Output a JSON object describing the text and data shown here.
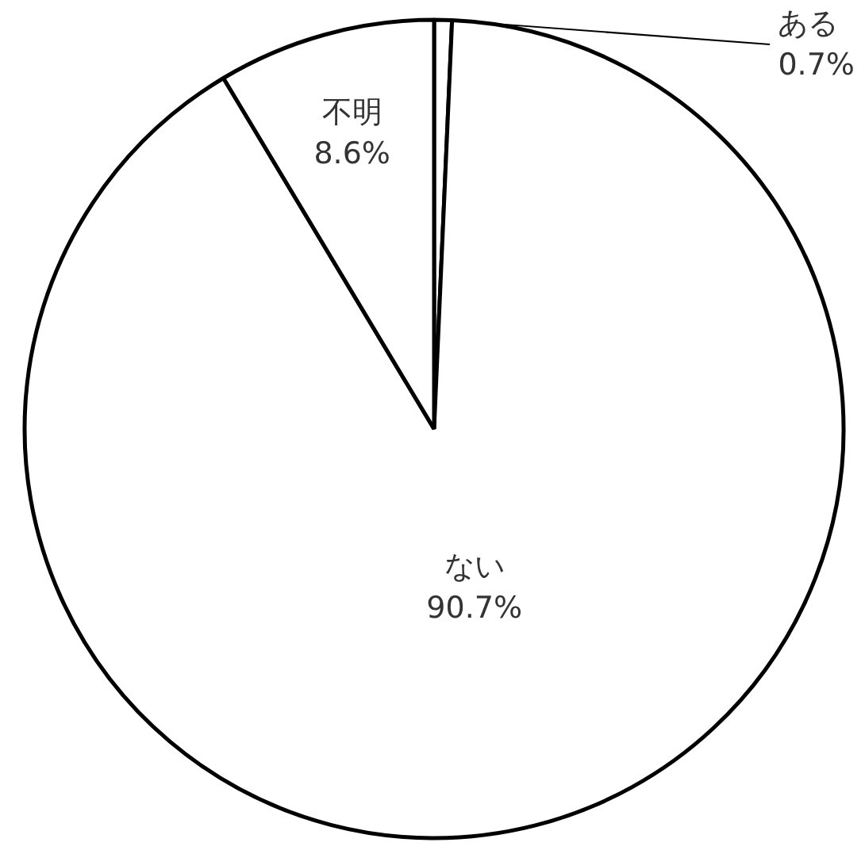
{
  "chart_data": {
    "type": "pie",
    "categories": [
      "ある",
      "ない",
      "不明"
    ],
    "values": [
      0.7,
      90.7,
      8.6
    ],
    "value_labels": [
      "0.7%",
      "90.7%",
      "8.6%"
    ],
    "colors": [
      "#ffffff",
      "#ffffff",
      "#ffffff"
    ]
  }
}
